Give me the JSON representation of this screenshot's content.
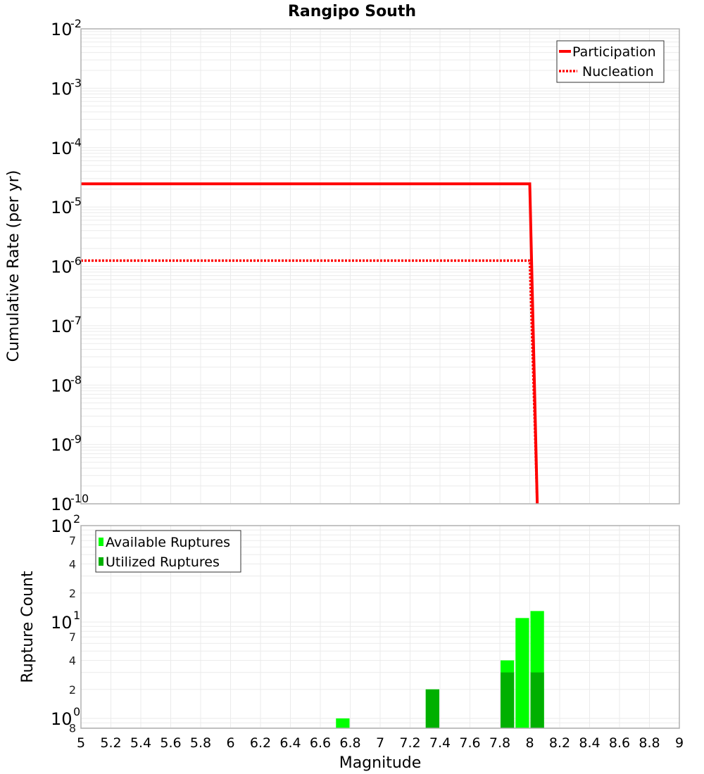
{
  "chart_data": [
    {
      "type": "line",
      "title": "Rangipo South",
      "xlabel": "",
      "ylabel": "Cumulative Rate (per yr)",
      "xlim": [
        5,
        9
      ],
      "ylim": [
        1e-10,
        0.01
      ],
      "yscale": "log",
      "grid": true,
      "legend_position": "top-right",
      "y_ticks": [
        "10^-2",
        "10^-3",
        "10^-4",
        "10^-5",
        "10^-6",
        "10^-7",
        "10^-8",
        "10^-9",
        "10^-10"
      ],
      "series": [
        {
          "name": "Participation",
          "style": "solid",
          "color": "#ff0000",
          "x": [
            5.0,
            8.0,
            8.05
          ],
          "y": [
            2.45e-05,
            2.45e-05,
            1e-10
          ]
        },
        {
          "name": "Nucleation",
          "style": "dotted",
          "color": "#ff0000",
          "x": [
            5.0,
            8.0,
            8.05
          ],
          "y": [
            1.25e-06,
            1.25e-06,
            1e-10
          ]
        }
      ]
    },
    {
      "type": "bar",
      "title": "",
      "xlabel": "Magnitude",
      "ylabel": "Rupture Count",
      "xlim": [
        5,
        9
      ],
      "ylim": [
        0.8,
        100
      ],
      "yscale": "log",
      "grid": true,
      "legend_position": "top-left",
      "bar_width": 0.1,
      "x_ticks": [
        "5",
        "5.2",
        "5.4",
        "5.6",
        "5.8",
        "6",
        "6.2",
        "6.4",
        "6.6",
        "6.8",
        "7",
        "7.2",
        "7.4",
        "7.6",
        "7.8",
        "8",
        "8.2",
        "8.4",
        "8.6",
        "8.8",
        "9"
      ],
      "y_ticks": [
        {
          "value": 100,
          "label": "10",
          "exp": "2",
          "major": true
        },
        {
          "value": 70,
          "label": "7",
          "major": false
        },
        {
          "value": 40,
          "label": "4",
          "major": false
        },
        {
          "value": 20,
          "label": "2",
          "major": false
        },
        {
          "value": 10,
          "label": "10",
          "exp": "1",
          "major": true
        },
        {
          "value": 7,
          "label": "7",
          "major": false
        },
        {
          "value": 4,
          "label": "4",
          "major": false
        },
        {
          "value": 2,
          "label": "2",
          "major": false
        },
        {
          "value": 1,
          "label": "10",
          "exp": "0",
          "major": true
        },
        {
          "value": 0.8,
          "label": "8",
          "major": false
        }
      ],
      "categories": [
        6.75,
        7.35,
        7.85,
        7.95,
        8.05
      ],
      "series": [
        {
          "name": "Available Ruptures",
          "color": "#00ff00",
          "values": [
            1,
            2,
            4,
            11,
            13
          ]
        },
        {
          "name": "Utilized Ruptures",
          "color": "#00b000",
          "values": [
            0,
            2,
            3,
            0,
            3
          ]
        }
      ]
    }
  ],
  "labels": {
    "title": "Rangipo South",
    "top_ylabel": "Cumulative Rate (per yr)",
    "bottom_ylabel": "Rupture Count",
    "xlabel": "Magnitude",
    "legend_top": [
      "Participation",
      "Nucleation"
    ],
    "legend_bottom": [
      "Available Ruptures",
      "Utilized Ruptures"
    ]
  },
  "colors": {
    "participation": "#ff0000",
    "nucleation": "#ff0000",
    "available": "#00ff00",
    "utilized": "#00b000",
    "grid": "#ebebeb",
    "frame": "#b0b0b0"
  }
}
